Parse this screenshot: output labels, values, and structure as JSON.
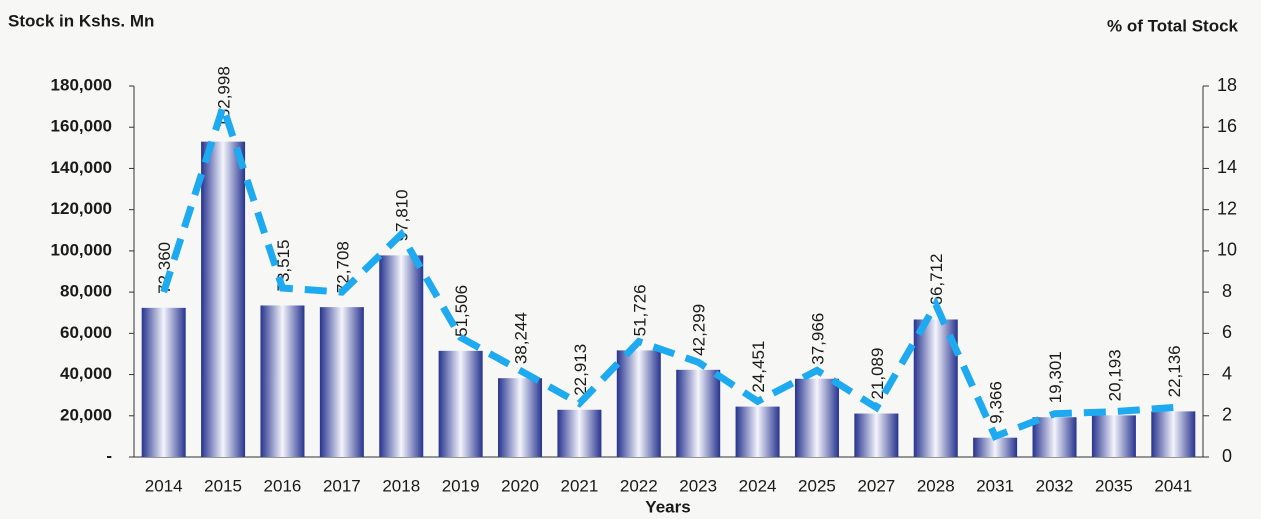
{
  "chart_data": {
    "type": "bar",
    "y_label": "Stock in Kshs. Mn",
    "y2_label": "% of Total Stock",
    "x_label": "Years",
    "categories": [
      "2014",
      "2015",
      "2016",
      "2017",
      "2018",
      "2019",
      "2020",
      "2021",
      "2022",
      "2023",
      "2024",
      "2025",
      "2027",
      "2028",
      "2031",
      "2032",
      "2035",
      "2041"
    ],
    "series": [
      {
        "type": "bar",
        "color": "#26338f",
        "values": [
          72360,
          152998,
          73515,
          72708,
          97810,
          51506,
          38244,
          22913,
          51726,
          42299,
          24451,
          37966,
          21089,
          66712,
          9366,
          19301,
          20193,
          22136
        ],
        "value_labels": [
          "72,360",
          "152,998",
          "73,515",
          "72,708",
          "97,810",
          "51,506",
          "38,244",
          "22,913",
          "51,726",
          "42,299",
          "24,451",
          "37,966",
          "21,089",
          "66,712",
          "9,366",
          "19,301",
          "20,193",
          "22,136"
        ]
      },
      {
        "type": "line",
        "axis": "y2",
        "color": "#1eaaf0",
        "values": [
          8.0,
          17.0,
          8.2,
          8.0,
          10.8,
          5.8,
          4.2,
          2.6,
          5.6,
          4.6,
          2.7,
          4.2,
          2.4,
          7.4,
          1.0,
          2.1,
          2.2,
          2.4
        ]
      }
    ],
    "ylim": [
      0,
      180000
    ],
    "yticks": [
      {
        "value": 0,
        "label": "-"
      },
      {
        "value": 20000,
        "label": "20,000"
      },
      {
        "value": 40000,
        "label": "40,000"
      },
      {
        "value": 60000,
        "label": "60,000"
      },
      {
        "value": 80000,
        "label": "80,000"
      },
      {
        "value": 100000,
        "label": "100,000"
      },
      {
        "value": 120000,
        "label": "120,000"
      },
      {
        "value": 140000,
        "label": "140,000"
      },
      {
        "value": 160000,
        "label": "160,000"
      },
      {
        "value": 180000,
        "label": "180,000"
      }
    ],
    "y2lim": [
      0,
      18
    ],
    "y2ticks": [
      0,
      2,
      4,
      6,
      8,
      10,
      12,
      14,
      16,
      18
    ]
  }
}
